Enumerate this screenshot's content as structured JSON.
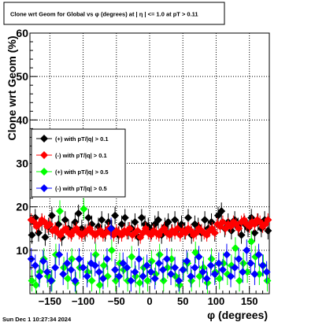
{
  "chart_data": {
    "type": "scatter",
    "title": "Clone wrt Geom for Global vs φ (degrees) at |  η  | <= 1.0 at pT > 0.11",
    "xlabel": "φ (degrees)",
    "ylabel": "Clone wrt Geom (%)",
    "xlim": [
      -180,
      180
    ],
    "ylim": [
      0,
      60
    ],
    "xticks": [
      -150,
      -100,
      -50,
      0,
      50,
      100,
      150
    ],
    "yticks": [
      10,
      20,
      30,
      40,
      50,
      60
    ],
    "grid": true,
    "legend_position": "middle-left",
    "timestamp": "Sun Dec  1 10:27:34 2024",
    "series": [
      {
        "name": "(+) with pT/|q| > 0.1",
        "color": "#000000",
        "x": [
          -177,
          -172,
          -167,
          -162,
          -157,
          -152,
          -147,
          -142,
          -137,
          -132,
          -127,
          -122,
          -117,
          -112,
          -107,
          -102,
          -97,
          -92,
          -87,
          -82,
          -77,
          -72,
          -67,
          -62,
          -57,
          -52,
          -47,
          -42,
          -37,
          -32,
          -27,
          -22,
          -17,
          -12,
          -7,
          -2,
          3,
          8,
          13,
          18,
          23,
          28,
          33,
          38,
          43,
          48,
          53,
          58,
          63,
          68,
          73,
          78,
          83,
          88,
          93,
          98,
          103,
          108,
          113,
          118,
          123,
          128,
          133,
          138,
          143,
          148,
          153,
          158,
          163,
          168,
          173,
          178
        ],
        "y": [
          13.5,
          17.5,
          14.0,
          16.5,
          13.0,
          15.5,
          18.0,
          14.5,
          16.0,
          13.0,
          17.0,
          15.0,
          14.5,
          16.5,
          18.5,
          15.0,
          14.0,
          17.5,
          16.0,
          13.5,
          15.5,
          17.0,
          14.0,
          16.5,
          15.0,
          18.0,
          13.5,
          16.0,
          17.5,
          14.5,
          15.0,
          16.5,
          13.0,
          17.5,
          16.0,
          15.5,
          14.5,
          16.0,
          17.0,
          13.5,
          15.5,
          16.5,
          14.0,
          17.0,
          15.0,
          16.0,
          14.5,
          17.5,
          13.5,
          16.0,
          15.5,
          14.0,
          17.0,
          15.0,
          16.5,
          14.0,
          18.0,
          19.0,
          15.0,
          16.5,
          14.5,
          17.0,
          15.5,
          13.5,
          16.0,
          15.0,
          17.5,
          14.0,
          16.5,
          15.0,
          17.0,
          14.5
        ],
        "err": [
          2.0,
          2.0,
          2.0,
          2.0,
          2.0,
          2.0,
          2.0,
          2.0,
          2.0,
          2.0,
          2.0,
          2.0,
          2.0,
          2.0,
          2.0,
          2.0,
          2.0,
          2.0,
          2.0,
          2.0,
          2.0,
          2.0,
          2.0,
          2.0,
          2.0,
          2.0,
          2.0,
          2.0,
          2.0,
          2.0,
          2.0,
          2.0,
          2.0,
          2.0,
          2.0,
          2.0,
          2.0,
          2.0,
          2.0,
          2.0,
          2.0,
          2.0,
          2.0,
          2.0,
          2.0,
          2.0,
          2.0,
          2.0,
          2.0,
          2.0,
          2.0,
          2.0,
          2.0,
          2.0,
          2.0,
          2.0,
          2.0,
          2.0,
          2.0,
          2.0,
          2.0,
          2.0,
          2.0,
          2.0,
          2.0,
          2.0,
          2.0,
          2.0,
          2.0,
          2.0,
          2.0,
          2.0
        ]
      },
      {
        "name": "(-) with pT/|q| > 0.1",
        "color": "#ff0000",
        "x": [
          -178,
          -174,
          -170,
          -166,
          -162,
          -158,
          -154,
          -150,
          -146,
          -142,
          -138,
          -134,
          -130,
          -126,
          -122,
          -118,
          -114,
          -110,
          -106,
          -102,
          -98,
          -94,
          -90,
          -86,
          -82,
          -78,
          -74,
          -70,
          -66,
          -62,
          -58,
          -54,
          -50,
          -46,
          -42,
          -38,
          -34,
          -30,
          -26,
          -22,
          -18,
          -14,
          -10,
          -6,
          -2,
          2,
          6,
          10,
          14,
          18,
          22,
          26,
          30,
          34,
          38,
          42,
          46,
          50,
          54,
          58,
          62,
          66,
          70,
          74,
          78,
          82,
          86,
          90,
          94,
          98,
          102,
          106,
          110,
          114,
          118,
          122,
          126,
          130,
          134,
          138,
          142,
          146,
          150,
          154,
          158,
          162,
          166,
          170,
          174,
          178
        ],
        "y": [
          17.0,
          16.5,
          15.5,
          16.0,
          17.0,
          16.5,
          15.5,
          16.0,
          14.5,
          15.0,
          14.0,
          13.5,
          14.5,
          15.0,
          14.0,
          13.5,
          14.5,
          15.0,
          14.0,
          13.5,
          14.0,
          14.5,
          15.0,
          14.0,
          13.5,
          14.0,
          14.5,
          13.5,
          14.0,
          15.0,
          14.0,
          13.5,
          14.5,
          14.0,
          13.5,
          14.5,
          14.0,
          15.0,
          13.5,
          14.0,
          14.5,
          13.0,
          14.0,
          15.0,
          14.0,
          13.5,
          14.5,
          14.0,
          13.5,
          14.5,
          15.0,
          14.0,
          13.5,
          14.5,
          14.0,
          15.0,
          13.5,
          14.5,
          14.0,
          15.0,
          14.5,
          13.5,
          14.0,
          15.0,
          14.5,
          14.0,
          13.5,
          14.5,
          15.0,
          14.0,
          16.0,
          15.5,
          16.5,
          15.0,
          16.0,
          15.5,
          16.5,
          16.0,
          15.0,
          16.5,
          17.0,
          16.0,
          15.5,
          16.5,
          16.0,
          17.0,
          16.5,
          15.5,
          16.0,
          17.0
        ],
        "err": [
          1.5,
          1.5,
          1.5,
          1.5,
          1.5,
          1.5,
          1.5,
          1.5,
          1.5,
          1.5,
          1.5,
          1.5,
          1.5,
          1.5,
          1.5,
          1.5,
          1.5,
          1.5,
          1.5,
          1.5,
          1.5,
          1.5,
          1.5,
          1.5,
          1.5,
          1.5,
          1.5,
          1.5,
          1.5,
          1.5,
          1.5,
          1.5,
          1.5,
          1.5,
          1.5,
          1.5,
          1.5,
          1.5,
          1.5,
          1.5,
          1.5,
          1.5,
          1.5,
          1.5,
          1.5,
          1.5,
          1.5,
          1.5,
          1.5,
          1.5,
          1.5,
          1.5,
          1.5,
          1.5,
          1.5,
          1.5,
          1.5,
          1.5,
          1.5,
          1.5,
          1.5,
          1.5,
          1.5,
          1.5,
          1.5,
          1.5,
          1.5,
          1.5,
          1.5,
          1.5,
          1.5,
          1.5,
          1.5,
          1.5,
          1.5,
          1.5,
          1.5,
          1.5,
          1.5,
          1.5,
          1.5,
          1.5,
          1.5,
          1.5,
          1.5,
          1.5,
          1.5,
          1.5,
          1.5,
          1.5
        ]
      },
      {
        "name": "(+) with pT/|q| > 0.5",
        "color": "#00ff00",
        "x": [
          -177,
          -171,
          -165,
          -159,
          -153,
          -147,
          -141,
          -135,
          -129,
          -123,
          -117,
          -111,
          -105,
          -99,
          -93,
          -87,
          -81,
          -75,
          -69,
          -63,
          -57,
          -51,
          -45,
          -39,
          -33,
          -27,
          -21,
          -15,
          -9,
          -3,
          3,
          9,
          15,
          21,
          27,
          33,
          39,
          45,
          51,
          57,
          63,
          69,
          75,
          81,
          87,
          93,
          99,
          105,
          111,
          117,
          123,
          129,
          135,
          141,
          147,
          153,
          159,
          165,
          171,
          177
        ],
        "y": [
          3.0,
          2.0,
          5.0,
          8.0,
          4.0,
          3.0,
          9.0,
          19.0,
          6.0,
          3.5,
          8.0,
          2.5,
          6.0,
          19.5,
          5.0,
          3.0,
          9.0,
          2.0,
          6.5,
          4.0,
          10.0,
          3.0,
          7.0,
          5.5,
          3.0,
          8.5,
          4.0,
          2.5,
          6.0,
          3.0,
          7.5,
          4.5,
          9.0,
          3.0,
          6.0,
          8.0,
          4.0,
          2.0,
          5.5,
          7.0,
          3.0,
          9.5,
          4.0,
          6.0,
          2.5,
          8.0,
          5.0,
          3.5,
          7.0,
          4.5,
          6.5,
          10.5,
          3.0,
          7.0,
          5.0,
          12.0,
          8.5,
          4.5,
          6.5,
          3.0
        ],
        "err": [
          2.5,
          2.5,
          2.5,
          2.5,
          2.5,
          2.5,
          2.5,
          2.5,
          2.5,
          2.5,
          2.5,
          2.5,
          2.5,
          2.5,
          2.5,
          2.5,
          2.5,
          2.5,
          2.5,
          2.5,
          2.5,
          2.5,
          2.5,
          2.5,
          2.5,
          2.5,
          2.5,
          2.5,
          2.5,
          2.5,
          2.5,
          2.5,
          2.5,
          2.5,
          2.5,
          2.5,
          2.5,
          2.5,
          2.5,
          2.5,
          2.5,
          2.5,
          2.5,
          2.5,
          2.5,
          2.5,
          2.5,
          2.5,
          2.5,
          2.5,
          2.5,
          2.5,
          2.5,
          2.5,
          2.5,
          2.5,
          2.5,
          2.5,
          2.5,
          2.5
        ]
      },
      {
        "name": "(-) with pT/|q| > 0.5",
        "color": "#0000ff",
        "x": [
          -178,
          -172,
          -166,
          -160,
          -154,
          -148,
          -142,
          -136,
          -130,
          -124,
          -118,
          -112,
          -106,
          -100,
          -94,
          -88,
          -82,
          -76,
          -70,
          -64,
          -58,
          -52,
          -46,
          -40,
          -34,
          -28,
          -22,
          -16,
          -10,
          -4,
          2,
          8,
          14,
          20,
          26,
          32,
          38,
          44,
          50,
          56,
          62,
          68,
          74,
          80,
          86,
          92,
          98,
          104,
          110,
          116,
          122,
          128,
          134,
          140,
          146,
          152,
          158,
          164,
          170,
          176
        ],
        "y": [
          8.0,
          6.5,
          4.0,
          7.5,
          5.0,
          3.0,
          6.0,
          9.0,
          4.5,
          7.0,
          5.5,
          3.0,
          8.0,
          6.0,
          4.0,
          7.0,
          6.5,
          5.0,
          3.5,
          8.0,
          15.0,
          5.5,
          4.0,
          7.0,
          6.0,
          3.0,
          5.0,
          8.0,
          4.0,
          6.5,
          5.0,
          3.5,
          7.0,
          5.5,
          8.0,
          4.5,
          6.0,
          3.0,
          5.5,
          7.5,
          4.0,
          6.0,
          8.5,
          5.0,
          3.5,
          6.5,
          4.5,
          7.0,
          5.5,
          9.0,
          4.0,
          6.0,
          8.0,
          5.0,
          10.0,
          7.0,
          4.5,
          9.0,
          6.5,
          5.0
        ],
        "err": [
          2.5,
          2.5,
          2.5,
          2.5,
          2.5,
          2.5,
          2.5,
          2.5,
          2.5,
          2.5,
          2.5,
          2.5,
          2.5,
          2.5,
          2.5,
          2.5,
          2.5,
          2.5,
          2.5,
          2.5,
          2.5,
          2.5,
          2.5,
          2.5,
          2.5,
          2.5,
          2.5,
          2.5,
          2.5,
          2.5,
          2.5,
          2.5,
          2.5,
          2.5,
          2.5,
          2.5,
          2.5,
          2.5,
          2.5,
          2.5,
          2.5,
          2.5,
          2.5,
          2.5,
          2.5,
          2.5,
          2.5,
          2.5,
          2.5,
          2.5,
          2.5,
          2.5,
          2.5,
          2.5,
          2.5,
          2.5,
          2.5,
          2.5,
          2.5,
          2.5
        ]
      }
    ]
  }
}
